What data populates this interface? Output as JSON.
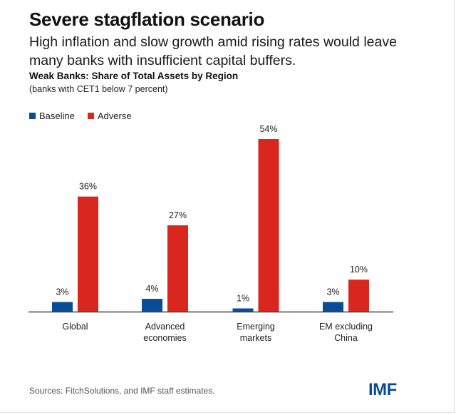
{
  "header": {
    "title": "Severe stagflation scenario",
    "subtitle": "High inflation and slow growth amid rising rates would leave many banks with insufficient capital buffers."
  },
  "chart_data": {
    "type": "bar",
    "title": "Weak Banks: Share of Total Assets by Region",
    "subtitle": "(banks with CET1 below 7 percent)",
    "categories": [
      [
        "Global"
      ],
      [
        "Advanced",
        "economies"
      ],
      [
        "Emerging",
        "markets"
      ],
      [
        "EM excluding",
        "China"
      ]
    ],
    "series": [
      {
        "name": "Baseline",
        "color": "#0a4b97",
        "values": [
          3,
          4,
          1,
          3
        ],
        "labels": [
          "3%",
          "4%",
          "1%",
          "3%"
        ]
      },
      {
        "name": "Adverse",
        "color": "#d9271e",
        "values": [
          36,
          27,
          54,
          10
        ],
        "labels": [
          "36%",
          "27%",
          "54%",
          "10%"
        ]
      }
    ],
    "ylim": [
      0,
      54
    ],
    "grid": false,
    "legend": "top-left",
    "unit": "percent"
  },
  "footer": {
    "source": "Sources: FitchSolutions, and IMF staff estimates.",
    "logo": "IMF"
  }
}
